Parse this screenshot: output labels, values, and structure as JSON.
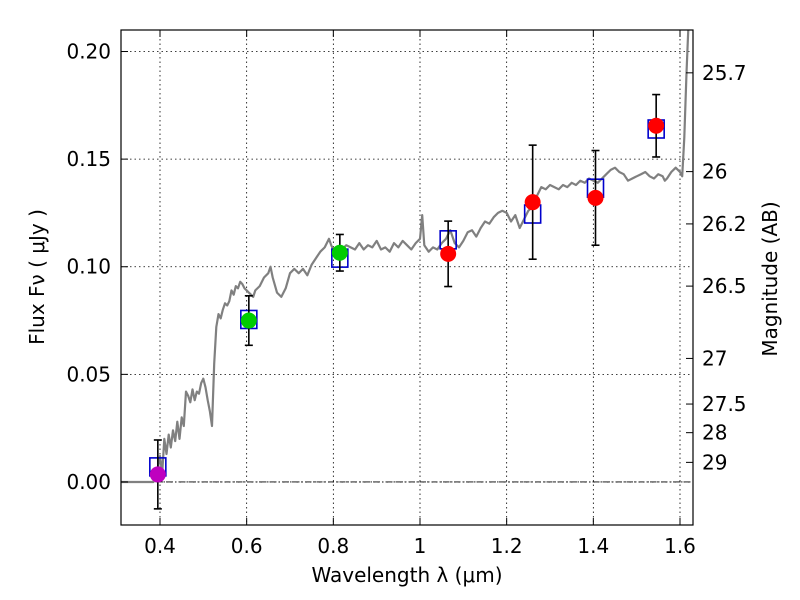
{
  "chart_data": {
    "type": "scatter",
    "xlabel": "Wavelength  λ (μm)",
    "ylabel": "Flux  Fν  ( μJy )",
    "ylabel_right": "Magnitude (AB)",
    "xlim": [
      0.31,
      1.63
    ],
    "ylim": [
      -0.02,
      0.21
    ],
    "x_ticks": [
      0.4,
      0.6,
      0.8,
      1.0,
      1.2,
      1.4,
      1.6
    ],
    "x_tick_labels": [
      "0.4",
      "0.6",
      "0.8",
      "1",
      "1.2",
      "1.4",
      "1.6"
    ],
    "y_ticks": [
      0.0,
      0.05,
      0.1,
      0.15,
      0.2
    ],
    "y_tick_labels": [
      "0.00",
      "0.05",
      "0.10",
      "0.15",
      "0.20"
    ],
    "right_ticks": [
      {
        "label": "25.7",
        "flux": 0.1901
      },
      {
        "label": "26",
        "flux": 0.1442
      },
      {
        "label": "26.2",
        "flux": 0.1199
      },
      {
        "label": "26.5",
        "flux": 0.091
      },
      {
        "label": "27",
        "flux": 0.0574
      },
      {
        "label": "27.5",
        "flux": 0.0362
      },
      {
        "label": "28",
        "flux": 0.0229
      },
      {
        "label": "29",
        "flux": 0.0091
      }
    ],
    "grid": true,
    "reference_line_y": 0.0,
    "colors": {
      "model": "#808080",
      "model_box": "#0000cc",
      "purple": "#bf00bf",
      "green": "#00cc00",
      "red": "#ff0000",
      "errorbar": "#000000"
    },
    "photometry": [
      {
        "x": 0.395,
        "y": 0.0035,
        "err": 0.016,
        "color": "purple"
      },
      {
        "x": 0.605,
        "y": 0.075,
        "err": 0.0115,
        "color": "green"
      },
      {
        "x": 0.815,
        "y": 0.1065,
        "err": 0.0085,
        "color": "green"
      },
      {
        "x": 1.065,
        "y": 0.106,
        "err": 0.0152,
        "color": "red"
      },
      {
        "x": 1.26,
        "y": 0.13,
        "err": 0.0265,
        "color": "red"
      },
      {
        "x": 1.405,
        "y": 0.132,
        "err": 0.022,
        "color": "red"
      },
      {
        "x": 1.545,
        "y": 0.1655,
        "err": 0.0145,
        "color": "red"
      }
    ],
    "model_boxes": [
      {
        "x": 0.395,
        "y": 0.007
      },
      {
        "x": 0.605,
        "y": 0.0755
      },
      {
        "x": 0.815,
        "y": 0.104
      },
      {
        "x": 1.065,
        "y": 0.1125
      },
      {
        "x": 1.26,
        "y": 0.1245
      },
      {
        "x": 1.405,
        "y": 0.1365
      },
      {
        "x": 1.545,
        "y": 0.164
      }
    ],
    "model_spectrum": [
      [
        0.31,
        0.0
      ],
      [
        0.37,
        0.0
      ],
      [
        0.385,
        0.0
      ],
      [
        0.39,
        0.003
      ],
      [
        0.395,
        0.006
      ],
      [
        0.4,
        0.012
      ],
      [
        0.405,
        0.004
      ],
      [
        0.41,
        0.02
      ],
      [
        0.415,
        0.013
      ],
      [
        0.42,
        0.022
      ],
      [
        0.425,
        0.016
      ],
      [
        0.43,
        0.024
      ],
      [
        0.435,
        0.019
      ],
      [
        0.44,
        0.028
      ],
      [
        0.445,
        0.02
      ],
      [
        0.45,
        0.03
      ],
      [
        0.455,
        0.026
      ],
      [
        0.46,
        0.042
      ],
      [
        0.465,
        0.04
      ],
      [
        0.47,
        0.037
      ],
      [
        0.475,
        0.043
      ],
      [
        0.48,
        0.038
      ],
      [
        0.485,
        0.042
      ],
      [
        0.49,
        0.041
      ],
      [
        0.495,
        0.046
      ],
      [
        0.5,
        0.048
      ],
      [
        0.505,
        0.044
      ],
      [
        0.51,
        0.038
      ],
      [
        0.515,
        0.033
      ],
      [
        0.52,
        0.026
      ],
      [
        0.525,
        0.055
      ],
      [
        0.53,
        0.072
      ],
      [
        0.535,
        0.078
      ],
      [
        0.54,
        0.076
      ],
      [
        0.545,
        0.08
      ],
      [
        0.55,
        0.083
      ],
      [
        0.555,
        0.082
      ],
      [
        0.56,
        0.084
      ],
      [
        0.565,
        0.089
      ],
      [
        0.57,
        0.087
      ],
      [
        0.575,
        0.091
      ],
      [
        0.58,
        0.09
      ],
      [
        0.585,
        0.093
      ],
      [
        0.59,
        0.092
      ],
      [
        0.595,
        0.09
      ],
      [
        0.6,
        0.089
      ],
      [
        0.605,
        0.088
      ],
      [
        0.61,
        0.087
      ],
      [
        0.615,
        0.086
      ],
      [
        0.62,
        0.089
      ],
      [
        0.63,
        0.091
      ],
      [
        0.64,
        0.095
      ],
      [
        0.65,
        0.097
      ],
      [
        0.655,
        0.1
      ],
      [
        0.66,
        0.095
      ],
      [
        0.67,
        0.088
      ],
      [
        0.68,
        0.086
      ],
      [
        0.69,
        0.09
      ],
      [
        0.7,
        0.097
      ],
      [
        0.71,
        0.099
      ],
      [
        0.72,
        0.097
      ],
      [
        0.73,
        0.099
      ],
      [
        0.74,
        0.096
      ],
      [
        0.75,
        0.101
      ],
      [
        0.76,
        0.104
      ],
      [
        0.77,
        0.107
      ],
      [
        0.78,
        0.109
      ],
      [
        0.79,
        0.113
      ],
      [
        0.795,
        0.11
      ],
      [
        0.8,
        0.108
      ],
      [
        0.81,
        0.106
      ],
      [
        0.82,
        0.108
      ],
      [
        0.83,
        0.11
      ],
      [
        0.84,
        0.109
      ],
      [
        0.85,
        0.108
      ],
      [
        0.86,
        0.111
      ],
      [
        0.87,
        0.108
      ],
      [
        0.88,
        0.11
      ],
      [
        0.89,
        0.109
      ],
      [
        0.9,
        0.112
      ],
      [
        0.91,
        0.108
      ],
      [
        0.92,
        0.109
      ],
      [
        0.93,
        0.107
      ],
      [
        0.94,
        0.111
      ],
      [
        0.95,
        0.109
      ],
      [
        0.96,
        0.112
      ],
      [
        0.97,
        0.11
      ],
      [
        0.98,
        0.108
      ],
      [
        0.99,
        0.111
      ],
      [
        1.0,
        0.113
      ],
      [
        1.005,
        0.124
      ],
      [
        1.01,
        0.11
      ],
      [
        1.02,
        0.107
      ],
      [
        1.03,
        0.109
      ],
      [
        1.04,
        0.108
      ],
      [
        1.05,
        0.111
      ],
      [
        1.06,
        0.113
      ],
      [
        1.07,
        0.117
      ],
      [
        1.08,
        0.111
      ],
      [
        1.09,
        0.109
      ],
      [
        1.1,
        0.112
      ],
      [
        1.11,
        0.116
      ],
      [
        1.12,
        0.117
      ],
      [
        1.13,
        0.114
      ],
      [
        1.14,
        0.118
      ],
      [
        1.15,
        0.121
      ],
      [
        1.16,
        0.12
      ],
      [
        1.17,
        0.123
      ],
      [
        1.18,
        0.125
      ],
      [
        1.19,
        0.126
      ],
      [
        1.2,
        0.125
      ],
      [
        1.21,
        0.121
      ],
      [
        1.22,
        0.124
      ],
      [
        1.23,
        0.118
      ],
      [
        1.24,
        0.122
      ],
      [
        1.25,
        0.126
      ],
      [
        1.26,
        0.128
      ],
      [
        1.27,
        0.133
      ],
      [
        1.28,
        0.137
      ],
      [
        1.29,
        0.136
      ],
      [
        1.3,
        0.138
      ],
      [
        1.31,
        0.137
      ],
      [
        1.32,
        0.136
      ],
      [
        1.33,
        0.138
      ],
      [
        1.34,
        0.137
      ],
      [
        1.35,
        0.139
      ],
      [
        1.36,
        0.138
      ],
      [
        1.37,
        0.14
      ],
      [
        1.38,
        0.139
      ],
      [
        1.39,
        0.141
      ],
      [
        1.4,
        0.14
      ],
      [
        1.41,
        0.139
      ],
      [
        1.42,
        0.141
      ],
      [
        1.43,
        0.143
      ],
      [
        1.44,
        0.145
      ],
      [
        1.45,
        0.146
      ],
      [
        1.46,
        0.144
      ],
      [
        1.47,
        0.143
      ],
      [
        1.48,
        0.14
      ],
      [
        1.49,
        0.141
      ],
      [
        1.5,
        0.142
      ],
      [
        1.51,
        0.143
      ],
      [
        1.52,
        0.144
      ],
      [
        1.53,
        0.142
      ],
      [
        1.54,
        0.141
      ],
      [
        1.55,
        0.143
      ],
      [
        1.56,
        0.142
      ],
      [
        1.565,
        0.14
      ],
      [
        1.57,
        0.141
      ],
      [
        1.58,
        0.144
      ],
      [
        1.59,
        0.146
      ],
      [
        1.6,
        0.144
      ],
      [
        1.605,
        0.142
      ],
      [
        1.61,
        0.16
      ],
      [
        1.615,
        0.19
      ],
      [
        1.62,
        0.215
      ]
    ]
  }
}
